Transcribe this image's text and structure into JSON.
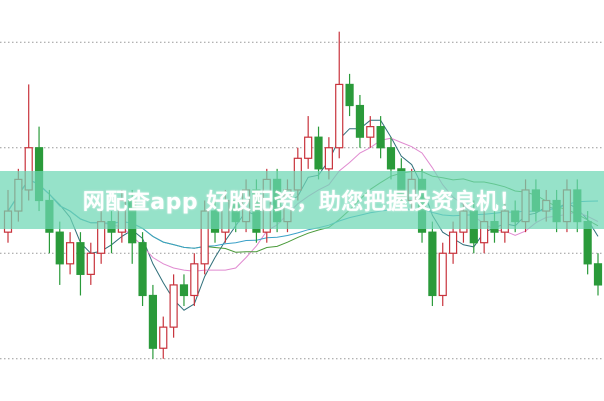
{
  "banner": {
    "text": "网配查app 好股配资，助您把握投资良机！"
  },
  "colors": {
    "up": "#c8333c",
    "down": "#2a9a3a",
    "grid": "#999999",
    "banner": "#6ed7b4",
    "ma": [
      "#2f6f7a",
      "#e08ad0",
      "#4a9a3a",
      "#3aa0c8"
    ]
  },
  "chart_data": {
    "type": "candlestick",
    "title": "",
    "grid": true,
    "gridlines": [
      10,
      20,
      30,
      40
    ],
    "ylim": [
      6,
      44
    ],
    "moving_average_periods": [
      5,
      10,
      20,
      40
    ],
    "ohlc": [
      [
        22,
        26,
        21,
        24
      ],
      [
        24,
        28,
        23,
        27
      ],
      [
        26,
        36,
        25,
        30
      ],
      [
        30,
        32,
        24,
        25
      ],
      [
        25,
        26,
        20,
        22
      ],
      [
        22,
        23,
        17,
        19
      ],
      [
        19,
        22,
        18,
        21
      ],
      [
        21,
        22,
        16,
        18
      ],
      [
        18,
        21,
        17,
        20
      ],
      [
        20,
        24,
        19,
        23
      ],
      [
        23,
        24,
        20,
        22
      ],
      [
        22,
        26,
        21,
        25
      ],
      [
        25,
        26,
        19,
        21
      ],
      [
        21,
        22,
        15,
        16
      ],
      [
        16,
        17,
        10,
        11
      ],
      [
        11,
        14,
        10,
        13
      ],
      [
        13,
        18,
        12,
        17
      ],
      [
        17,
        18,
        15,
        16
      ],
      [
        16,
        20,
        15,
        19
      ],
      [
        19,
        25,
        18,
        24
      ],
      [
        24,
        25,
        21,
        22
      ],
      [
        22,
        26,
        21,
        25
      ],
      [
        25,
        26,
        22,
        23
      ],
      [
        23,
        27,
        22,
        26
      ],
      [
        26,
        27,
        21,
        22
      ],
      [
        22,
        28,
        21,
        27
      ],
      [
        27,
        28,
        22,
        23
      ],
      [
        23,
        27,
        22,
        26
      ],
      [
        26,
        30,
        25,
        29
      ],
      [
        29,
        33,
        28,
        31
      ],
      [
        31,
        32,
        27,
        28
      ],
      [
        28,
        31,
        27,
        30
      ],
      [
        30,
        41,
        29,
        36
      ],
      [
        36,
        37,
        33,
        34
      ],
      [
        34,
        35,
        30,
        31
      ],
      [
        31,
        33,
        30,
        32
      ],
      [
        32,
        33,
        29,
        30
      ],
      [
        30,
        31,
        27,
        28
      ],
      [
        28,
        29,
        24,
        25
      ],
      [
        25,
        28,
        24,
        27
      ],
      [
        27,
        28,
        21,
        22
      ],
      [
        22,
        23,
        15,
        16
      ],
      [
        16,
        21,
        15,
        20
      ],
      [
        20,
        23,
        19,
        22
      ],
      [
        22,
        25,
        21,
        24
      ],
      [
        24,
        25,
        20,
        21
      ],
      [
        21,
        24,
        20,
        23
      ],
      [
        23,
        24,
        21,
        22
      ],
      [
        22,
        25,
        21,
        24
      ],
      [
        24,
        25,
        22,
        23
      ],
      [
        23,
        27,
        22,
        26
      ],
      [
        26,
        27,
        23,
        24
      ],
      [
        24,
        26,
        23,
        25
      ],
      [
        25,
        26,
        22,
        23
      ],
      [
        23,
        27,
        22,
        26
      ],
      [
        26,
        27,
        22,
        23
      ],
      [
        23,
        24,
        18,
        19
      ],
      [
        19,
        20,
        16,
        17
      ]
    ]
  }
}
